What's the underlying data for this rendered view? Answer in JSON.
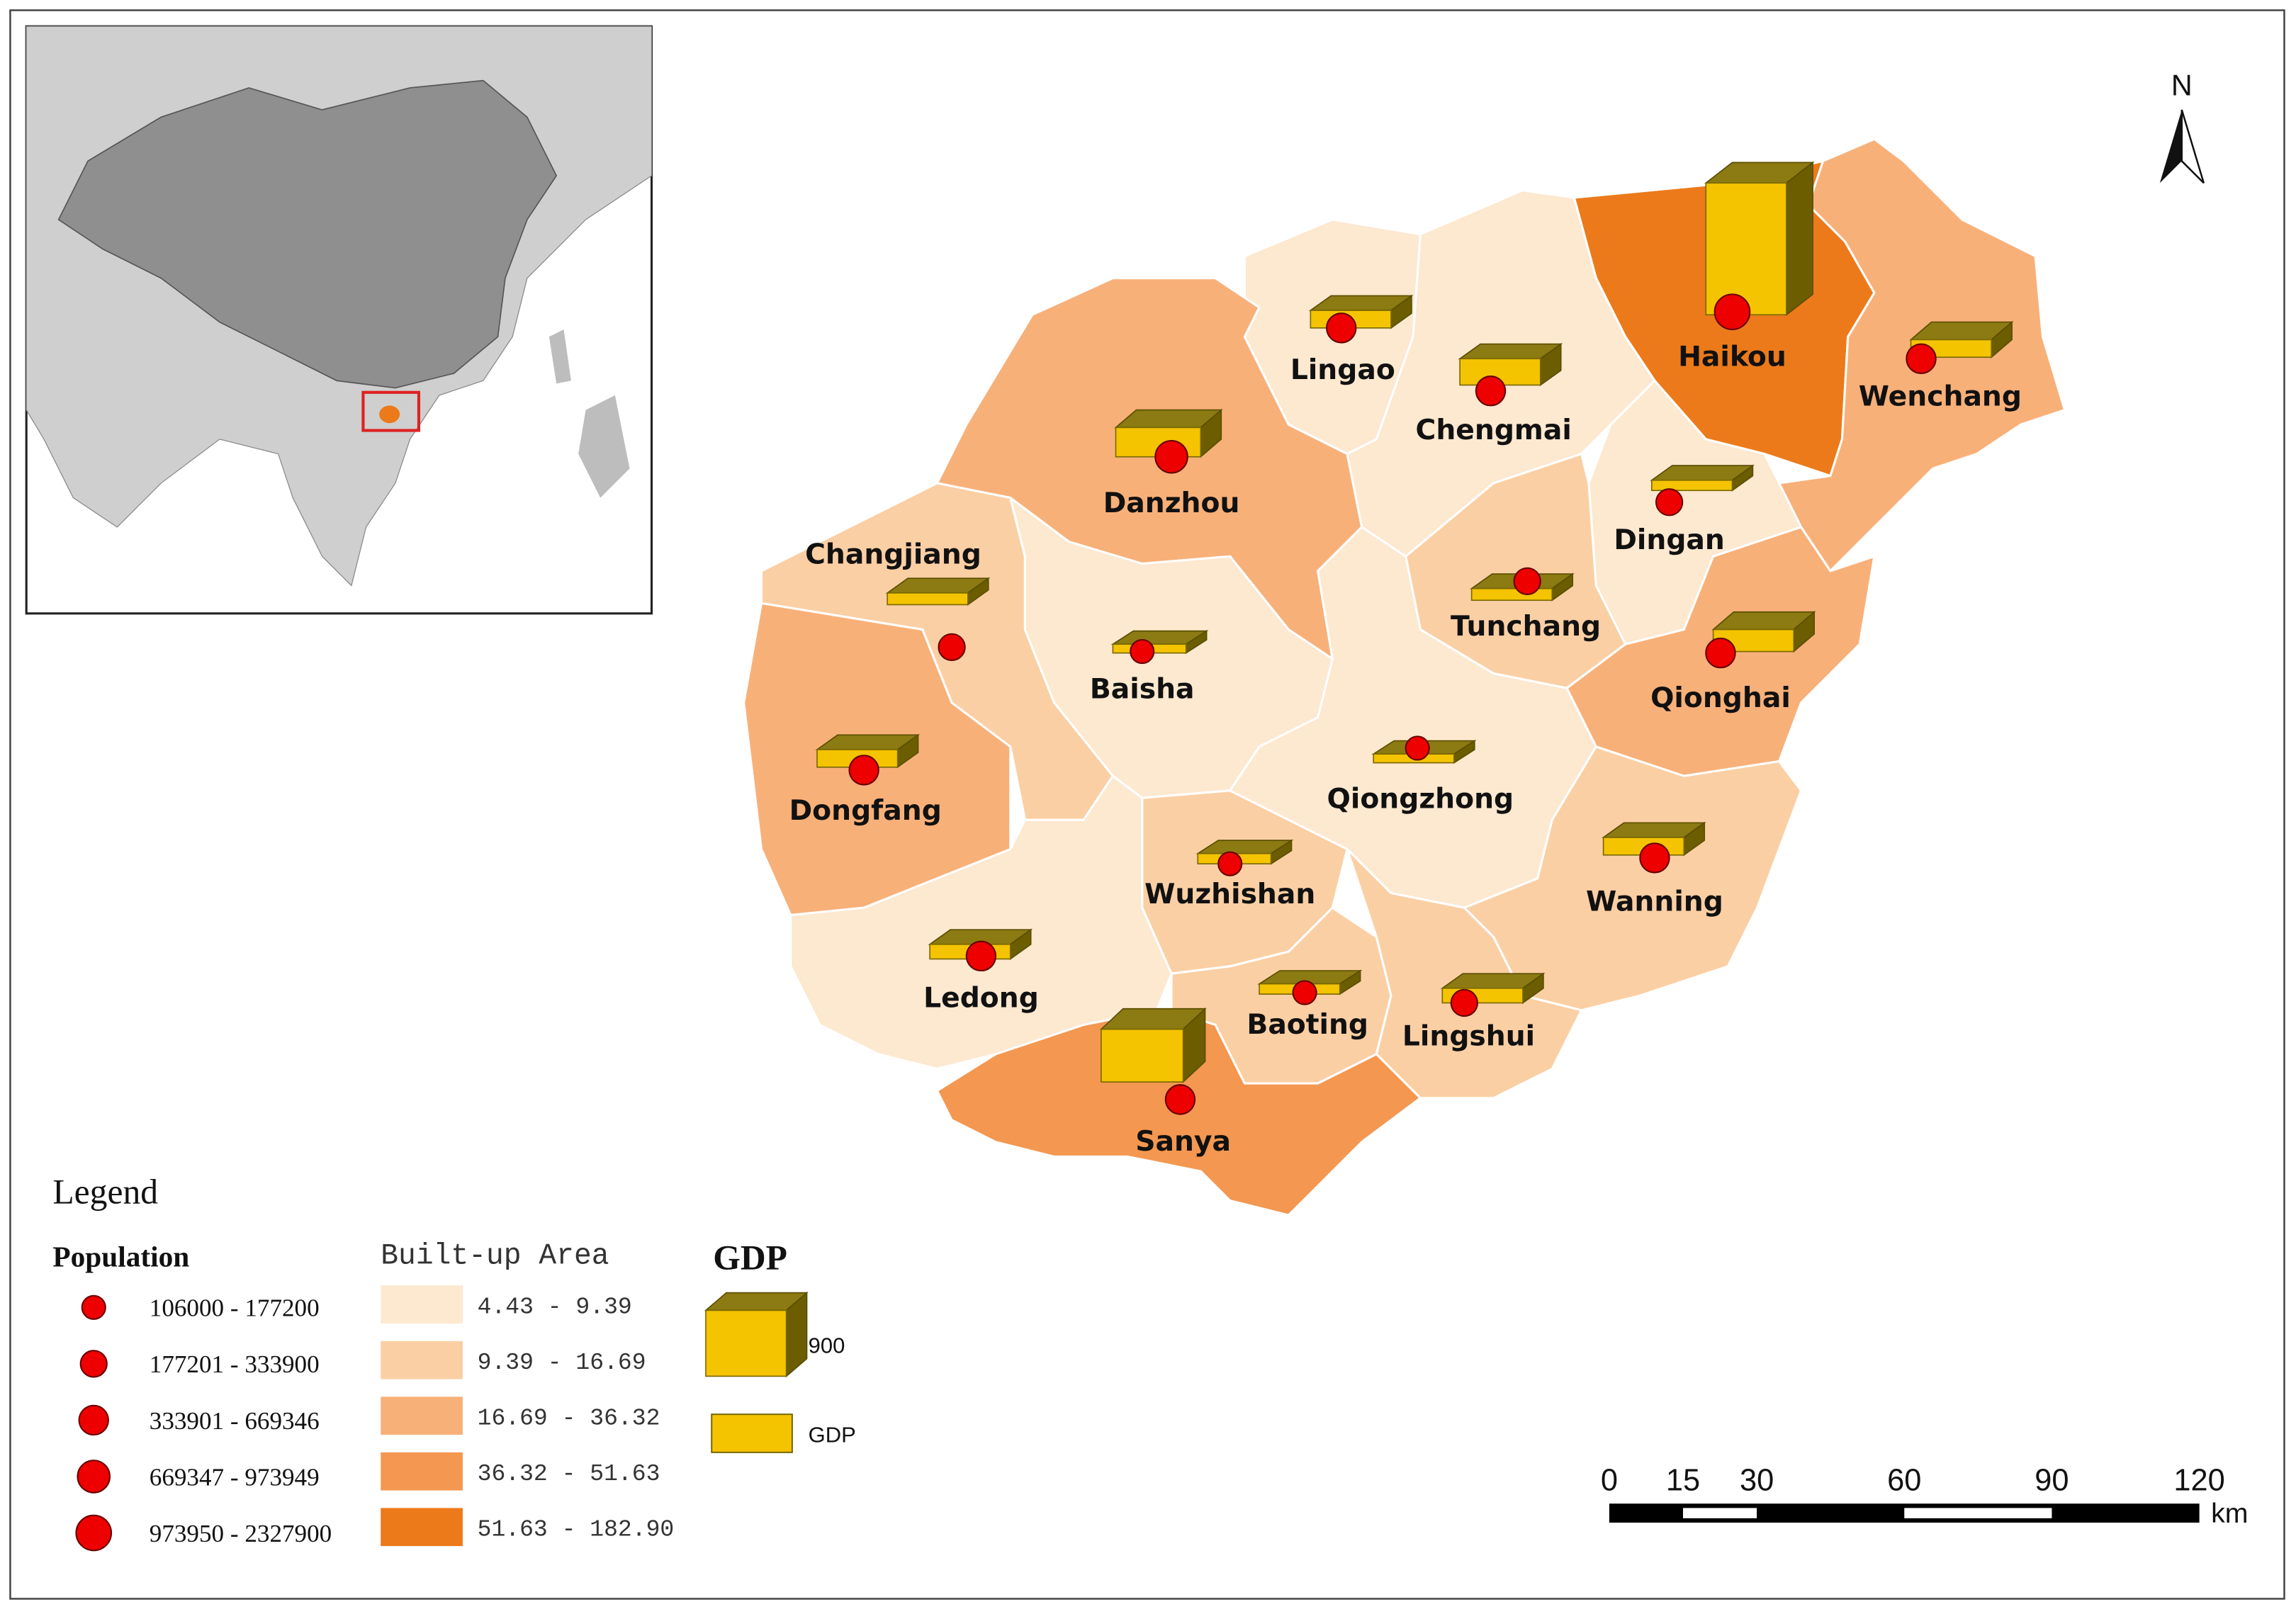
{
  "map": {
    "north": "N",
    "cities": [
      "Haikou",
      "Wenchang",
      "Lingao",
      "Chengmai",
      "Danzhou",
      "Dingan",
      "Changjiang",
      "Baisha",
      "Tunchang",
      "Qionghai",
      "Dongfang",
      "Qiongzhong",
      "Wanning",
      "Wuzhishan",
      "Ledong",
      "Baoting",
      "Lingshui",
      "Sanya"
    ],
    "legend": {
      "title": "Legend",
      "population": {
        "title": "Population",
        "classes": [
          "106000 - 177200",
          "177201 - 333900",
          "333901 - 669346",
          "669347 - 973949",
          "973950 - 2327900"
        ]
      },
      "built_up_area": {
        "title": "Built-up Area",
        "classes": [
          "4.43 - 9.39",
          "9.39 - 16.69",
          "16.69 - 36.32",
          "36.32 - 51.63",
          "51.63 - 182.90"
        ],
        "colors": [
          "#fde8d0",
          "#fbcfa4",
          "#f8b079",
          "#f49750",
          "#ec7a1a"
        ]
      },
      "gdp": {
        "title": "GDP",
        "reference_value": "900",
        "item": "GDP"
      }
    },
    "scale_bar": {
      "ticks": [
        0,
        15,
        30,
        60,
        90,
        120
      ],
      "unit": "km"
    }
  }
}
